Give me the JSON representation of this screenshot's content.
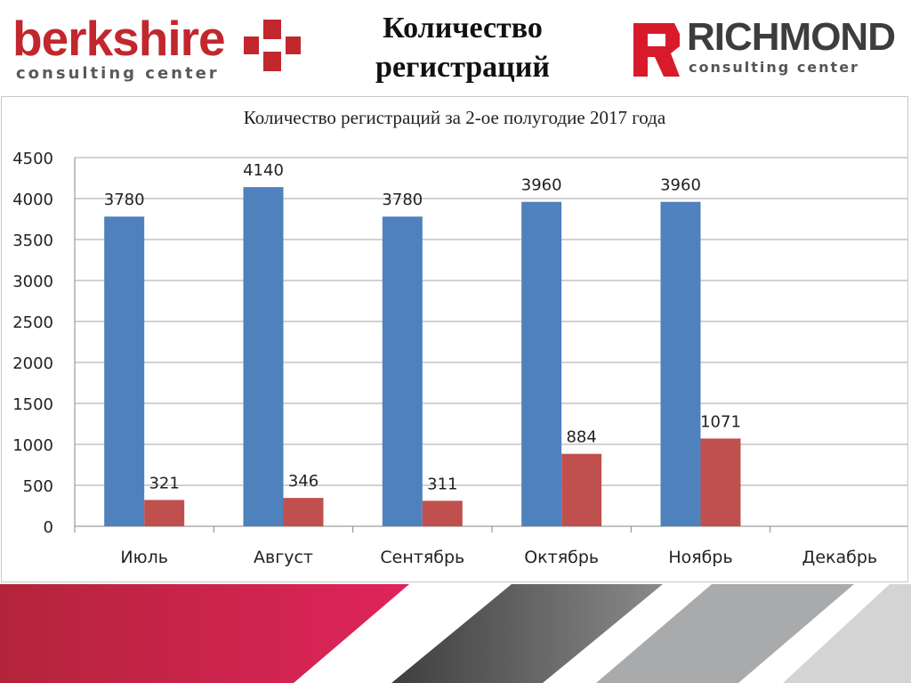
{
  "header": {
    "title_line1": "Количество",
    "title_line2": "регистраций"
  },
  "logos": {
    "left": {
      "name": "berkshire",
      "tagline": "consulting center",
      "color": "#c1272d"
    },
    "right": {
      "name": "RICHMOND",
      "tagline": "consulting center",
      "color": "#3d3d3d"
    }
  },
  "chart_data": {
    "type": "bar",
    "title": "Количество регистраций за 2-ое полугодие 2017 года",
    "categories": [
      "Июль",
      "Август",
      "Сентябрь",
      "Октябрь",
      "Ноябрь",
      "Декабрь"
    ],
    "series": [
      {
        "color": "#4f81bd",
        "values": [
          3780,
          4140,
          3780,
          3960,
          3960,
          null
        ]
      },
      {
        "color": "#c0504d",
        "values": [
          321,
          346,
          311,
          884,
          1071,
          null
        ]
      }
    ],
    "ylim": [
      0,
      4500
    ],
    "yticks": [
      0,
      500,
      1000,
      1500,
      2000,
      2500,
      3000,
      3500,
      4000,
      4500
    ],
    "grid": true,
    "legend": "none"
  },
  "colors": {
    "accent_red": "#c1272d",
    "footer_pink": "#d81b4f",
    "footer_gray": "#5a5a5a"
  }
}
